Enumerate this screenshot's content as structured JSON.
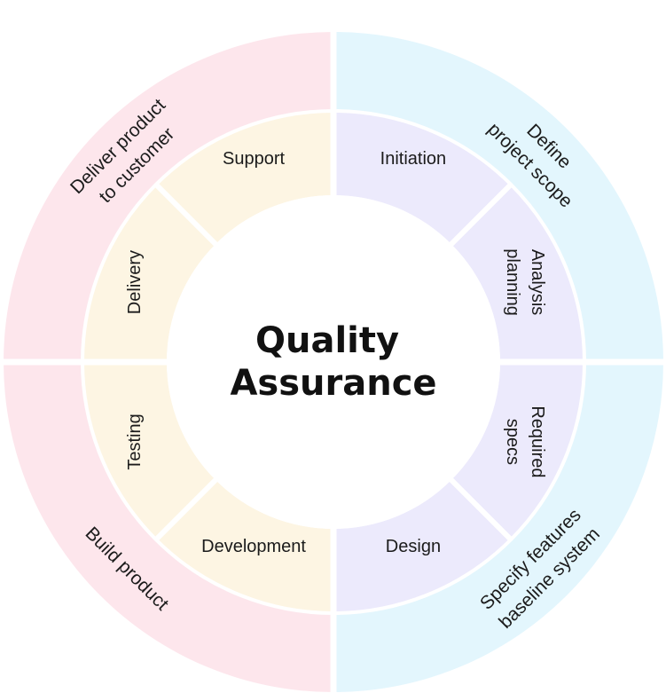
{
  "title": [
    "Quality",
    "Assurance"
  ],
  "outer_ring": [
    {
      "lines": [
        "Define",
        "project scope"
      ],
      "color": "#e3f6fd"
    },
    {
      "lines": [
        "Specify features",
        "baseline system"
      ],
      "color": "#e3f6fd"
    },
    {
      "lines": [
        "Build product"
      ],
      "color": "#fde6ec"
    },
    {
      "lines": [
        "Deliver product",
        "to customer"
      ],
      "color": "#fde6ec"
    }
  ],
  "inner_ring": [
    {
      "lines": [
        "Initiation"
      ],
      "color": "#eceafc"
    },
    {
      "lines": [
        "Analysis",
        "planning"
      ],
      "color": "#eceafc"
    },
    {
      "lines": [
        "Required",
        "specs"
      ],
      "color": "#eceafc"
    },
    {
      "lines": [
        "Design"
      ],
      "color": "#eceafc"
    },
    {
      "lines": [
        "Development"
      ],
      "color": "#fdf5e3"
    },
    {
      "lines": [
        "Testing"
      ],
      "color": "#fdf5e3"
    },
    {
      "lines": [
        "Delivery"
      ],
      "color": "#fdf5e3"
    },
    {
      "lines": [
        "Support"
      ],
      "color": "#fdf5e3"
    }
  ],
  "colors": {
    "background": "#ffffff",
    "separator": "#ffffff",
    "text": "#1b1b1b"
  }
}
